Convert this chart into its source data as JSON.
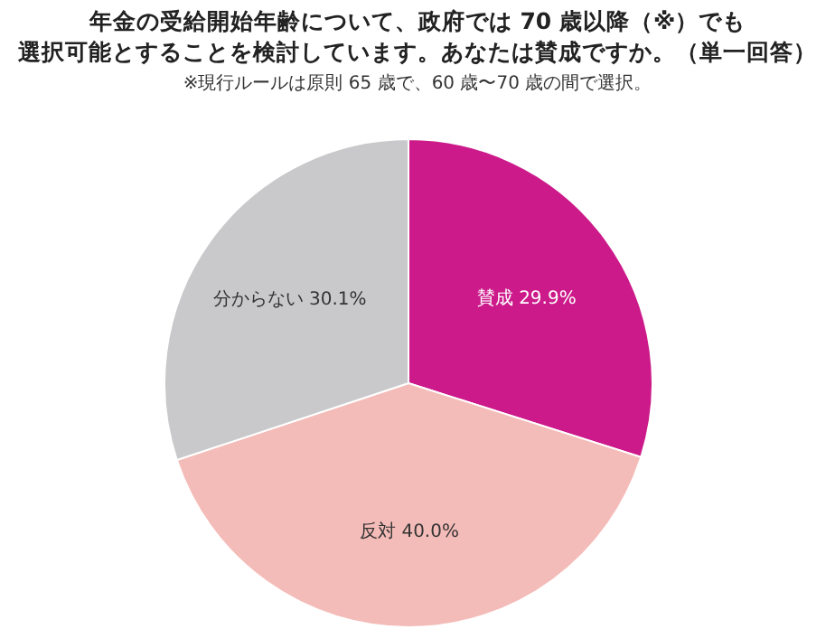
{
  "chart_data": {
    "type": "pie",
    "title": "年金の受給開始年齢について、政府では 70 歳以降（※）でも",
    "subtitle": "選択可能とすることを検討しています。あなたは賛成ですか。（単一回答）",
    "annotations": [
      "※現行ルールは原則 65 歳で、60 歳〜70 歳の間で選択。"
    ],
    "categories": [
      "賛成",
      "反対",
      "分からない"
    ],
    "values": [
      29.9,
      40.0,
      30.1
    ],
    "value_labels": [
      "29.9%",
      "40.0%",
      "30.1%"
    ],
    "colors": [
      "#cc1a8a",
      "#f4bcb8",
      "#c9c9cb"
    ]
  }
}
